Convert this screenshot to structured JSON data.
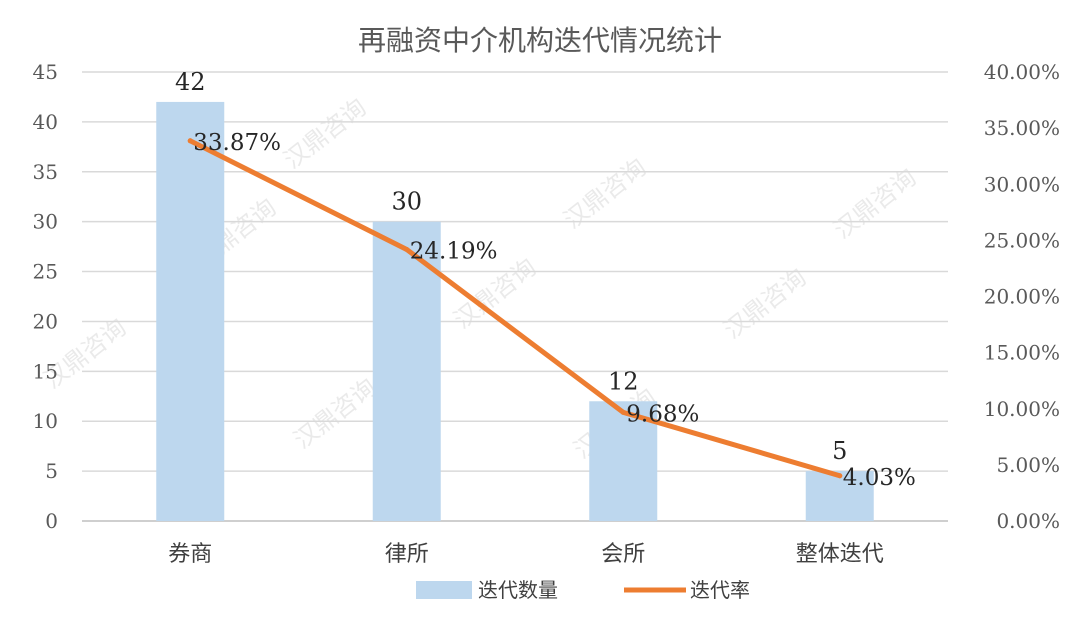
{
  "chart_data": {
    "type": "bar",
    "title": "再融资中介机构迭代情况统计",
    "categories": [
      "券商",
      "律所",
      "会所",
      "整体迭代"
    ],
    "series": [
      {
        "name": "迭代数量",
        "type": "bar",
        "axis": "left",
        "color": "#bdd7ee",
        "values": [
          42,
          30,
          12,
          5
        ],
        "labels": [
          "42",
          "30",
          "12",
          "5"
        ]
      },
      {
        "name": "迭代率",
        "type": "line",
        "axis": "right",
        "color": "#ed7d31",
        "values": [
          33.87,
          24.19,
          9.68,
          4.03
        ],
        "labels": [
          "33.87%",
          "24.19%",
          "9.68%",
          "4.03%"
        ]
      }
    ],
    "y_left": {
      "min": 0,
      "max": 45,
      "ticks": [
        "0",
        "5",
        "10",
        "15",
        "20",
        "25",
        "30",
        "35",
        "40",
        "45"
      ]
    },
    "y_right": {
      "min": 0,
      "max": 40,
      "ticks": [
        "0.00%",
        "5.00%",
        "10.00%",
        "15.00%",
        "20.00%",
        "25.00%",
        "30.00%",
        "35.00%",
        "40.00%"
      ]
    },
    "grid": true,
    "legend_position": "bottom",
    "watermark": "汉鼎咨询",
    "colors": {
      "grid": "#d9d9d9",
      "axis_text": "#595959"
    }
  }
}
